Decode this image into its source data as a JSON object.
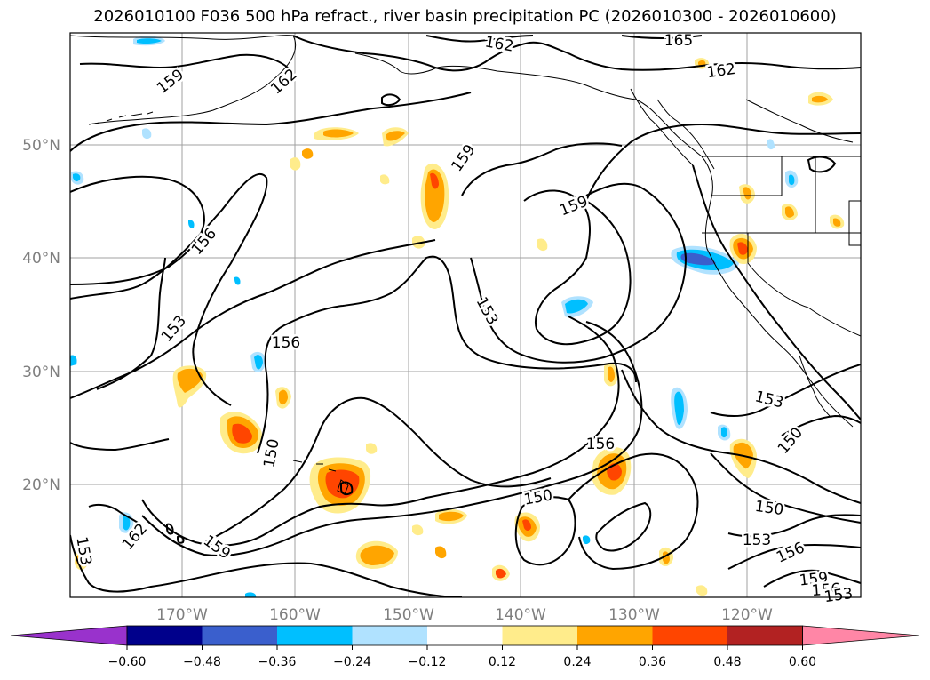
{
  "title": "2026010100 F036 500 hPa refract., river basin precipitation PC (2026010300 - 2026010600)",
  "lat_labels": [
    "50°N",
    "40°N",
    "30°N",
    "20°N"
  ],
  "lon_labels": [
    "170°W",
    "160°W",
    "150°W",
    "140°W",
    "130°W",
    "120°W"
  ],
  "colorbar": {
    "colors": [
      "#9932cc",
      "#00008b",
      "#3a5fcd",
      "#00bfff",
      "#b0e2ff",
      "#ffffff",
      "#ffec8b",
      "#ffa500",
      "#ff4500",
      "#b22222",
      "#ff86a6"
    ],
    "tick_labels": [
      "−0.60",
      "−0.48",
      "−0.36",
      "−0.24",
      "−0.12",
      "0.12",
      "0.24",
      "0.36",
      "0.48",
      "0.60"
    ]
  },
  "contour_labels": [
    "162",
    "165",
    "162",
    "159",
    "162",
    "159",
    "159",
    "156",
    "153",
    "153",
    "156",
    "150",
    "156",
    "150",
    "153",
    "150",
    "150",
    "153",
    "156",
    "159",
    "156",
    "153",
    "162",
    "159",
    "153"
  ]
}
